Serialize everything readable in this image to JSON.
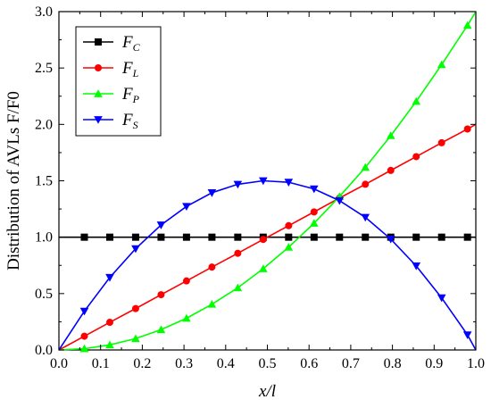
{
  "chart_data": {
    "type": "line",
    "xlabel": "x/l",
    "ylabel": "Distribution of AVLs F/F0",
    "xlim": [
      0,
      1
    ],
    "ylim": [
      0,
      3
    ],
    "x_ticks": [
      "0.0",
      "0.1",
      "0.2",
      "0.3",
      "0.4",
      "0.5",
      "0.6",
      "0.7",
      "0.8",
      "0.9",
      "1.0"
    ],
    "y_ticks": [
      "0.0",
      "0.5",
      "1.0",
      "1.5",
      "2.0",
      "2.5",
      "3.0"
    ],
    "grid": false,
    "legend_position": "top-left",
    "series": [
      {
        "name": "FC",
        "legend_main": "F",
        "legend_sub": "C",
        "color": "#000000",
        "marker": "square",
        "x": [
          0.0,
          0.061,
          0.122,
          0.184,
          0.245,
          0.306,
          0.367,
          0.429,
          0.49,
          0.551,
          0.612,
          0.673,
          0.735,
          0.796,
          0.857,
          0.918,
          0.98,
          1.0
        ],
        "y": [
          1.0,
          1.0,
          1.0,
          1.0,
          1.0,
          1.0,
          1.0,
          1.0,
          1.0,
          1.0,
          1.0,
          1.0,
          1.0,
          1.0,
          1.0,
          1.0,
          1.0,
          1.0
        ]
      },
      {
        "name": "FL",
        "legend_main": "F",
        "legend_sub": "L",
        "color": "#ff0000",
        "marker": "circle",
        "x": [
          0.0,
          0.061,
          0.122,
          0.184,
          0.245,
          0.306,
          0.367,
          0.429,
          0.49,
          0.551,
          0.612,
          0.673,
          0.735,
          0.796,
          0.857,
          0.918,
          0.98,
          1.0
        ],
        "y": [
          0.0,
          0.122,
          0.245,
          0.367,
          0.49,
          0.612,
          0.735,
          0.857,
          0.98,
          1.102,
          1.224,
          1.347,
          1.469,
          1.592,
          1.714,
          1.837,
          1.959,
          2.0
        ]
      },
      {
        "name": "FP",
        "legend_main": "F",
        "legend_sub": "P",
        "color": "#00ff00",
        "marker": "triangle-up",
        "x": [
          0.0,
          0.061,
          0.122,
          0.184,
          0.245,
          0.306,
          0.367,
          0.429,
          0.49,
          0.551,
          0.612,
          0.673,
          0.735,
          0.796,
          0.857,
          0.918,
          0.98,
          1.0
        ],
        "y": [
          0.0,
          0.011,
          0.045,
          0.101,
          0.18,
          0.281,
          0.405,
          0.551,
          0.72,
          0.911,
          1.124,
          1.36,
          1.619,
          1.9,
          2.204,
          2.53,
          2.878,
          3.0
        ]
      },
      {
        "name": "FS",
        "legend_main": "F",
        "legend_sub": "S",
        "color": "#0000ff",
        "marker": "triangle-down",
        "x": [
          0.0,
          0.061,
          0.122,
          0.184,
          0.245,
          0.306,
          0.367,
          0.429,
          0.49,
          0.551,
          0.612,
          0.673,
          0.735,
          0.796,
          0.857,
          0.918,
          0.98,
          1.0
        ],
        "y": [
          0.0,
          0.344,
          0.643,
          0.898,
          1.108,
          1.273,
          1.394,
          1.469,
          1.5,
          1.487,
          1.428,
          1.324,
          1.176,
          0.983,
          0.745,
          0.462,
          0.134,
          0.0
        ]
      }
    ]
  }
}
